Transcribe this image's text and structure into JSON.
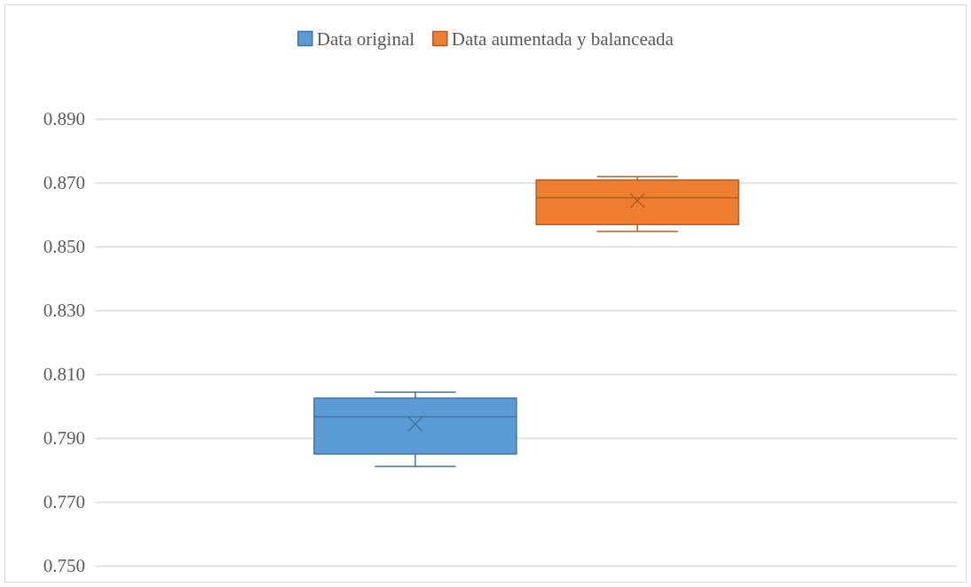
{
  "chart_data": {
    "type": "box",
    "categories": [
      null
    ],
    "series": [
      {
        "name": "Data original",
        "color": "#5b9bd5",
        "boxes": [
          {
            "low": 0.7811,
            "q1": 0.785,
            "median": 0.7967,
            "q3": 0.8025,
            "high": 0.8044,
            "mean": 0.7944
          }
        ]
      },
      {
        "name": "Data aumentada y balanceada",
        "color": "#ed7d31",
        "boxes": [
          {
            "low": 0.8547,
            "q1": 0.8569,
            "median": 0.8653,
            "q3": 0.8708,
            "high": 0.8719,
            "mean": 0.8644
          }
        ]
      }
    ],
    "ylim": [
      0.75,
      0.89
    ],
    "yticks": [
      {
        "value": 0.75,
        "label": "0.750"
      },
      {
        "value": 0.77,
        "label": "0.770"
      },
      {
        "value": 0.79,
        "label": "0.790"
      },
      {
        "value": 0.81,
        "label": "0.810"
      },
      {
        "value": 0.83,
        "label": "0.830"
      },
      {
        "value": 0.85,
        "label": "0.850"
      },
      {
        "value": 0.87,
        "label": "0.870"
      },
      {
        "value": 0.89,
        "label": "0.890"
      }
    ],
    "grid": "y",
    "legend": "top",
    "marker": "cross"
  }
}
